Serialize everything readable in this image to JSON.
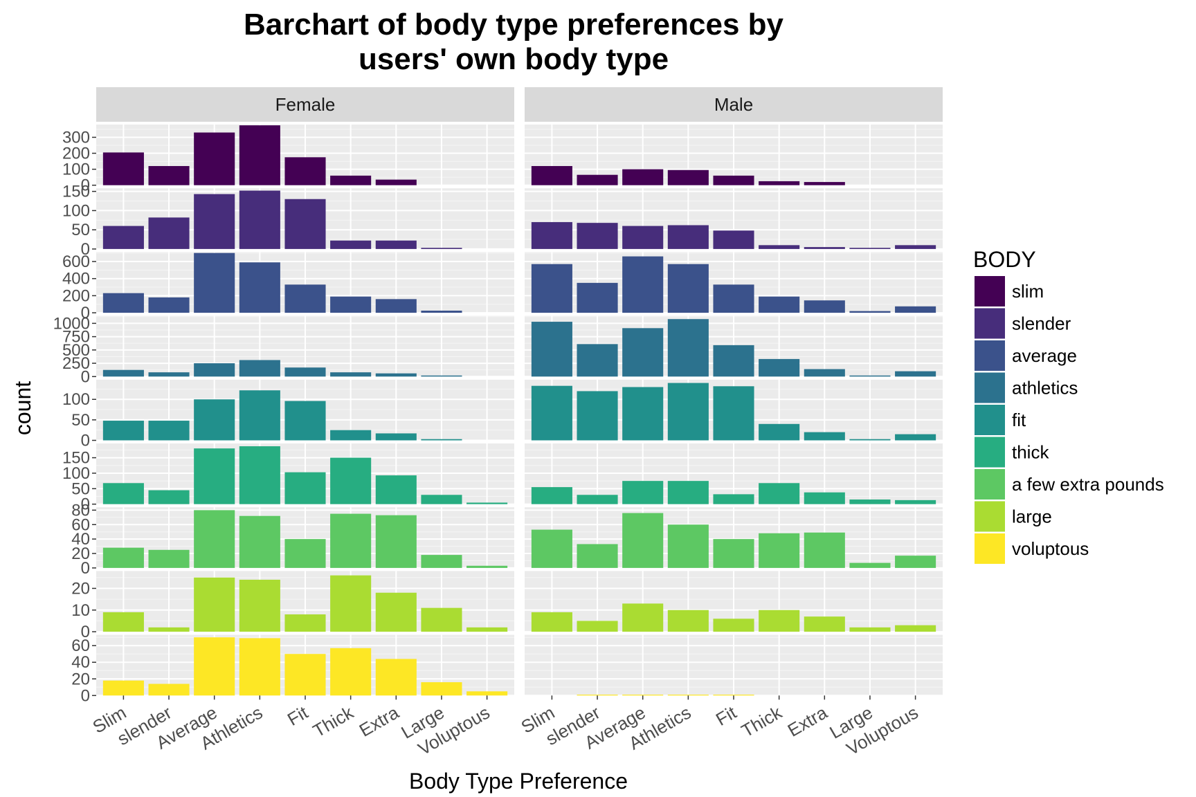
{
  "chart_data": {
    "type": "bar",
    "title": "Barchart of body type preferences by users' own body type",
    "title_lines": [
      "Barchart of body type preferences by",
      "users' own body type"
    ],
    "xlabel": "Body Type Preference",
    "ylabel": "count",
    "categories": [
      "Slim",
      "slender",
      "Average",
      "Athletics",
      "Fit",
      "Thick",
      "Extra",
      "Large",
      "Voluptous"
    ],
    "facet_columns": [
      "Female",
      "Male"
    ],
    "legend": {
      "title": "BODY",
      "placement": "right",
      "entries": [
        {
          "label": "slim",
          "color": "#440154"
        },
        {
          "label": "slender",
          "color": "#472D7B"
        },
        {
          "label": "average",
          "color": "#3B528B"
        },
        {
          "label": "athletics",
          "color": "#2C728E"
        },
        {
          "label": "fit",
          "color": "#21908C"
        },
        {
          "label": "thick",
          "color": "#27AD81"
        },
        {
          "label": "a few extra pounds",
          "color": "#5DC863"
        },
        {
          "label": "large",
          "color": "#AADC32"
        },
        {
          "label": "voluptous",
          "color": "#FDE725"
        }
      ]
    },
    "grid": true,
    "rows": [
      {
        "body": "slim",
        "color": "#440154",
        "ylim": [
          0,
          380
        ],
        "yticks": [
          0,
          100,
          200,
          300
        ],
        "Female": [
          205,
          120,
          330,
          375,
          175,
          60,
          35,
          0,
          0
        ],
        "Male": [
          120,
          65,
          100,
          95,
          60,
          25,
          20,
          0,
          0
        ]
      },
      {
        "body": "slender",
        "color": "#472D7B",
        "ylim": [
          0,
          158
        ],
        "yticks": [
          0,
          50,
          100,
          150
        ],
        "Female": [
          60,
          82,
          143,
          152,
          130,
          22,
          22,
          3,
          0
        ],
        "Male": [
          70,
          68,
          60,
          62,
          48,
          10,
          5,
          3,
          10
        ]
      },
      {
        "body": "average",
        "color": "#3B528B",
        "ylim": [
          0,
          710
        ],
        "yticks": [
          0,
          200,
          400,
          600
        ],
        "Female": [
          230,
          180,
          700,
          590,
          330,
          190,
          160,
          25,
          0
        ],
        "Male": [
          570,
          350,
          660,
          570,
          330,
          190,
          145,
          20,
          75
        ]
      },
      {
        "body": "athletics",
        "color": "#2C728E",
        "ylim": [
          0,
          1140
        ],
        "yticks": [
          0,
          250,
          500,
          750,
          1000
        ],
        "Female": [
          125,
          80,
          250,
          310,
          170,
          80,
          60,
          20,
          0
        ],
        "Male": [
          1030,
          610,
          910,
          1080,
          590,
          330,
          140,
          20,
          100
        ]
      },
      {
        "body": "fit",
        "color": "#21908C",
        "ylim": [
          0,
          148
        ],
        "yticks": [
          0,
          50,
          100
        ],
        "Female": [
          48,
          48,
          100,
          122,
          96,
          25,
          17,
          3,
          0
        ],
        "Male": [
          133,
          120,
          130,
          140,
          132,
          40,
          20,
          3,
          15
        ]
      },
      {
        "body": "thick",
        "color": "#27AD81",
        "ylim": [
          0,
          196
        ],
        "yticks": [
          0,
          50,
          100,
          150
        ],
        "Female": [
          68,
          45,
          180,
          187,
          103,
          150,
          93,
          30,
          5
        ],
        "Male": [
          55,
          30,
          75,
          75,
          32,
          68,
          38,
          15,
          13
        ]
      },
      {
        "body": "a few extra pounds",
        "color": "#5DC863",
        "ylim": [
          0,
          84
        ],
        "yticks": [
          0,
          20,
          40,
          60,
          80
        ],
        "Female": [
          28,
          25,
          80,
          72,
          40,
          75,
          73,
          18,
          3
        ],
        "Male": [
          53,
          33,
          76,
          60,
          40,
          48,
          49,
          7,
          17
        ]
      },
      {
        "body": "large",
        "color": "#AADC32",
        "ylim": [
          0,
          28
        ],
        "yticks": [
          0,
          10,
          20
        ],
        "Female": [
          9,
          2,
          25,
          24,
          8,
          26,
          18,
          11,
          2
        ],
        "Male": [
          9,
          5,
          13,
          10,
          6,
          10,
          7,
          2,
          3
        ]
      },
      {
        "body": "voluptous",
        "color": "#FDE725",
        "ylim": [
          0,
          73
        ],
        "yticks": [
          0,
          20,
          40,
          60
        ],
        "Female": [
          18,
          14,
          70,
          69,
          50,
          57,
          44,
          16,
          5
        ],
        "Male": [
          0,
          1,
          1,
          1,
          1,
          0,
          0,
          0,
          0
        ]
      }
    ]
  }
}
